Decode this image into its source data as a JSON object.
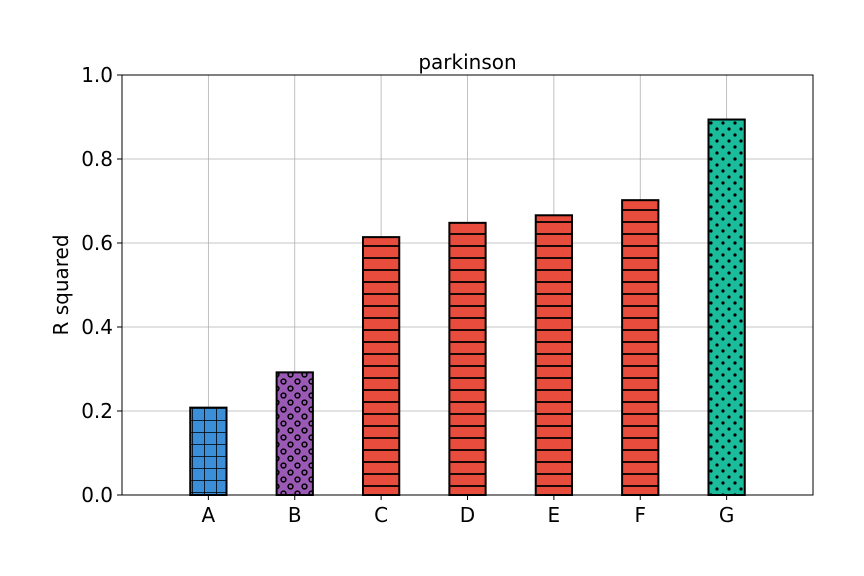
{
  "chart_data": {
    "type": "bar",
    "title": "parkinson",
    "xlabel": "",
    "ylabel": "R squared",
    "ylim": [
      0.0,
      1.0
    ],
    "yticks": [
      "0.0",
      "0.2",
      "0.4",
      "0.6",
      "0.8",
      "1.0"
    ],
    "grid": true,
    "categories": [
      "A",
      "B",
      "C",
      "D",
      "E",
      "F",
      "G"
    ],
    "values": [
      0.208,
      0.292,
      0.614,
      0.648,
      0.666,
      0.702,
      0.894
    ],
    "bar_colors": [
      "#3a8fd8",
      "#9b59b6",
      "#e74c3c",
      "#e74c3c",
      "#e74c3c",
      "#e74c3c",
      "#1abc9c"
    ],
    "bar_hatches": [
      "grid",
      "rings",
      "horizontal",
      "horizontal",
      "horizontal",
      "horizontal",
      "dots"
    ]
  }
}
